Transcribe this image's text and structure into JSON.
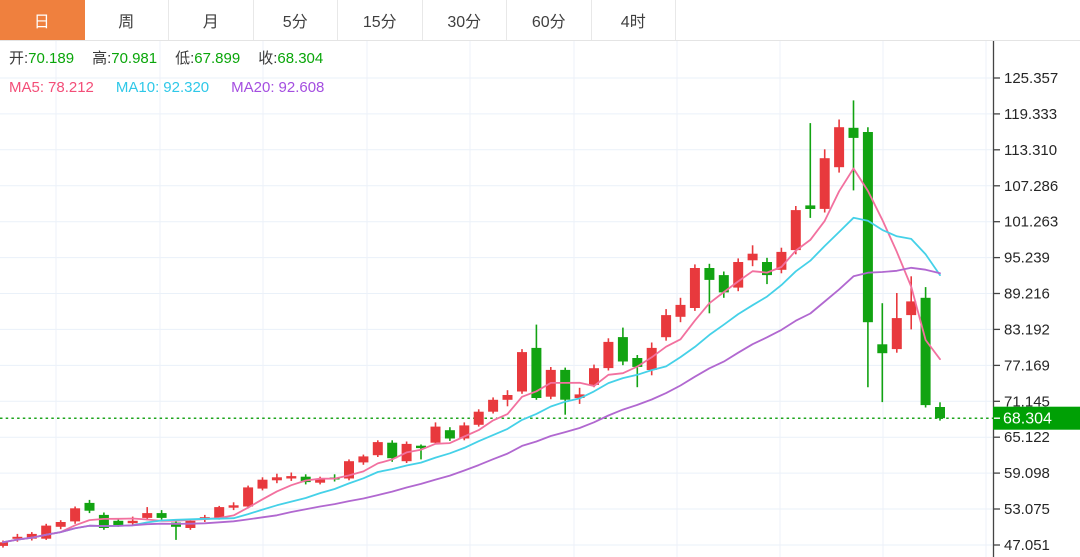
{
  "tabs": {
    "items": [
      {
        "label": "日",
        "name": "tab-day",
        "active": true
      },
      {
        "label": "周",
        "name": "tab-week",
        "active": false
      },
      {
        "label": "月",
        "name": "tab-month",
        "active": false
      },
      {
        "label": "5分",
        "name": "tab-5min",
        "active": false
      },
      {
        "label": "15分",
        "name": "tab-15min",
        "active": false
      },
      {
        "label": "30分",
        "name": "tab-30min",
        "active": false
      },
      {
        "label": "60分",
        "name": "tab-60min",
        "active": false
      },
      {
        "label": "4时",
        "name": "tab-4hour",
        "active": false
      }
    ]
  },
  "legend": {
    "ohlc": {
      "open_label": "开:",
      "open": "70.189",
      "high_label": "高:",
      "high": "70.981",
      "low_label": "低:",
      "low": "67.899",
      "close_label": "收:",
      "close": "68.304"
    },
    "ma": {
      "ma5_label": "MA5:",
      "ma5": "78.212",
      "ma10_label": "MA10:",
      "ma10": "92.320",
      "ma20_label": "MA20:",
      "ma20": "92.608"
    }
  },
  "colors": {
    "accent": "#ef803e",
    "up": "#e8393d",
    "down": "#12a312",
    "value_green": "#0aa60a",
    "ma5": "#f2719f",
    "ma10": "#45d1e8",
    "ma20": "#b168d0",
    "ma5_text": "#f34e78",
    "ma10_text": "#2fc8e8",
    "ma20_text": "#a44ee0",
    "grid": "#eaf1f9",
    "grid_v": "#edf1f8",
    "axis": "#444444",
    "axis_label": "#262626",
    "price_line": "#1ea51e",
    "badge": "#00a005",
    "tab_text": "#3f3f3f",
    "tab_border": "#e8e8e8"
  },
  "chart_data": {
    "type": "candlestick",
    "title": "",
    "xlabel": "",
    "ylabel": "",
    "legend_position": "top-left-overlay",
    "grid": true,
    "interval": "日",
    "y_ticks": [
      125.357,
      119.333,
      113.31,
      107.286,
      101.263,
      95.239,
      89.216,
      83.192,
      77.169,
      71.145,
      65.122,
      59.098,
      53.075,
      47.051
    ],
    "ylim": [
      45.5,
      127.5
    ],
    "current_price": 68.304,
    "current_price_label": "68.304",
    "ma_periods": [
      5,
      10,
      20
    ],
    "ma_latest": {
      "ma5": 78.212,
      "ma10": 92.32,
      "ma20": 92.608
    },
    "last_candle": {
      "open": 70.189,
      "high": 70.981,
      "low": 67.899,
      "close": 68.304
    },
    "candles_format": [
      "open",
      "high",
      "low",
      "close"
    ],
    "candles": [
      [
        46.9,
        47.8,
        46.6,
        47.5
      ],
      [
        48.1,
        48.9,
        47.6,
        48.4
      ],
      [
        48.1,
        49.2,
        47.8,
        48.9
      ],
      [
        48.1,
        50.6,
        47.9,
        50.3
      ],
      [
        50.1,
        51.2,
        49.7,
        50.9
      ],
      [
        51.0,
        53.5,
        50.6,
        53.2
      ],
      [
        54.1,
        54.6,
        52.4,
        52.8
      ],
      [
        52.1,
        52.5,
        49.6,
        49.9
      ],
      [
        51.1,
        51.4,
        50.1,
        50.4
      ],
      [
        50.7,
        51.8,
        50.4,
        51.1
      ],
      [
        51.6,
        53.4,
        51.2,
        52.4
      ],
      [
        52.4,
        52.9,
        51.3,
        51.6
      ],
      [
        50.8,
        51.0,
        47.9,
        50.1
      ],
      [
        49.9,
        51.4,
        49.6,
        51.1
      ],
      [
        51.3,
        52.1,
        50.9,
        51.7
      ],
      [
        51.6,
        53.6,
        51.3,
        53.4
      ],
      [
        53.3,
        54.2,
        52.9,
        53.7
      ],
      [
        53.5,
        57.0,
        53.2,
        56.7
      ],
      [
        56.5,
        58.4,
        56.2,
        58.0
      ],
      [
        57.9,
        59.0,
        57.4,
        58.4
      ],
      [
        58.2,
        59.2,
        57.8,
        58.6
      ],
      [
        58.5,
        58.9,
        57.2,
        57.6
      ],
      [
        57.5,
        58.5,
        57.2,
        58.2
      ],
      [
        58.3,
        58.9,
        57.7,
        58.1
      ],
      [
        58.2,
        61.4,
        57.9,
        61.1
      ],
      [
        60.9,
        62.2,
        60.5,
        61.9
      ],
      [
        62.1,
        64.6,
        61.8,
        64.3
      ],
      [
        64.2,
        64.6,
        61.0,
        61.6
      ],
      [
        61.1,
        64.4,
        60.8,
        64.0
      ],
      [
        63.7,
        63.9,
        61.4,
        63.3
      ],
      [
        64.2,
        67.6,
        63.9,
        66.9
      ],
      [
        66.3,
        66.8,
        64.5,
        64.9
      ],
      [
        64.9,
        67.6,
        64.6,
        67.1
      ],
      [
        67.2,
        69.8,
        66.9,
        69.4
      ],
      [
        69.4,
        71.8,
        69.1,
        71.4
      ],
      [
        71.4,
        73.0,
        70.3,
        72.2
      ],
      [
        72.8,
        79.9,
        72.4,
        79.4
      ],
      [
        80.1,
        84.0,
        71.4,
        71.7
      ],
      [
        71.9,
        76.9,
        71.5,
        76.4
      ],
      [
        76.4,
        76.8,
        68.9,
        71.4
      ],
      [
        71.7,
        73.4,
        70.7,
        72.3
      ],
      [
        73.9,
        77.3,
        73.5,
        76.7
      ],
      [
        76.7,
        81.7,
        76.3,
        81.1
      ],
      [
        81.9,
        83.5,
        77.2,
        77.8
      ],
      [
        78.4,
        78.9,
        73.5,
        76.9
      ],
      [
        76.4,
        81.0,
        75.5,
        80.1
      ],
      [
        81.9,
        86.6,
        81.3,
        85.6
      ],
      [
        85.3,
        88.5,
        84.4,
        87.3
      ],
      [
        86.8,
        94.1,
        86.3,
        93.5
      ],
      [
        93.5,
        94.2,
        85.9,
        91.5
      ],
      [
        92.3,
        92.9,
        88.5,
        89.4
      ],
      [
        90.2,
        95.1,
        89.6,
        94.5
      ],
      [
        94.8,
        97.3,
        93.8,
        95.9
      ],
      [
        94.5,
        95.2,
        90.8,
        92.3
      ],
      [
        93.2,
        96.9,
        92.6,
        96.2
      ],
      [
        96.5,
        103.9,
        95.8,
        103.2
      ],
      [
        104.0,
        117.8,
        101.9,
        103.4
      ],
      [
        103.4,
        113.4,
        102.8,
        111.9
      ],
      [
        110.4,
        118.4,
        109.5,
        117.1
      ],
      [
        117.0,
        121.6,
        106.5,
        115.3
      ],
      [
        116.3,
        117.1,
        73.5,
        84.4
      ],
      [
        80.7,
        87.6,
        71.0,
        79.2
      ],
      [
        79.9,
        89.3,
        79.3,
        85.1
      ],
      [
        85.6,
        92.1,
        83.2,
        87.9
      ],
      [
        88.5,
        90.3,
        70.1,
        70.5
      ],
      [
        70.189,
        70.981,
        67.899,
        68.304
      ]
    ]
  }
}
